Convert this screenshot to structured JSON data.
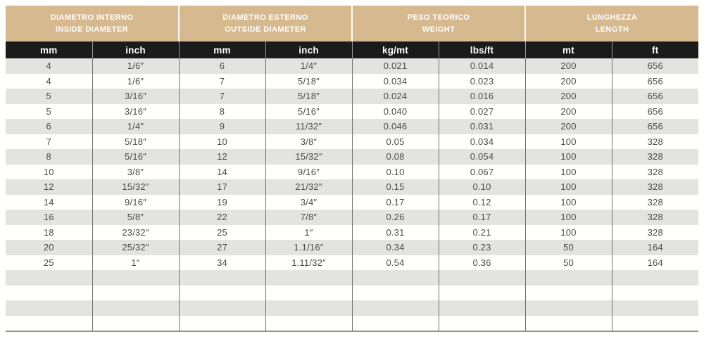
{
  "table": {
    "groups": [
      {
        "title_line1": "DIAMETRO INTERNO",
        "title_line2": "INSIDE DIAMETER",
        "units": [
          "mm",
          "inch"
        ]
      },
      {
        "title_line1": "DIAMETRO ESTERNO",
        "title_line2": "OUTSIDE DIAMETER",
        "units": [
          "mm",
          "inch"
        ]
      },
      {
        "title_line1": "PESO TEORICO",
        "title_line2": "WEIGHT",
        "units": [
          "kg/mt",
          "lbs/ft"
        ]
      },
      {
        "title_line1": "LUNGHEZZA",
        "title_line2": "LENGTH",
        "units": [
          "mt",
          "ft"
        ]
      }
    ],
    "rows": [
      [
        "4",
        "1/6″",
        "6",
        "1/4″",
        "0.021",
        "0.014",
        "200",
        "656"
      ],
      [
        "4",
        "1/6″",
        "7",
        "5/18″",
        "0.034",
        "0.023",
        "200",
        "656"
      ],
      [
        "5",
        "3/16″",
        "7",
        "5/18″",
        "0.024",
        "0.016",
        "200",
        "656"
      ],
      [
        "5",
        "3/16″",
        "8",
        "5/16″",
        "0.040",
        "0.027",
        "200",
        "656"
      ],
      [
        "6",
        "1/4″",
        "9",
        "11/32″",
        "0.046",
        "0.031",
        "200",
        "656"
      ],
      [
        "7",
        "5/18″",
        "10",
        "3/8″",
        "0.05",
        "0.034",
        "100",
        "328"
      ],
      [
        "8",
        "5/16″",
        "12",
        "15/32″",
        "0.08",
        "0.054",
        "100",
        "328"
      ],
      [
        "10",
        "3/8″",
        "14",
        "9/16″",
        "0.10",
        "0.067",
        "100",
        "328"
      ],
      [
        "12",
        "15/32″",
        "17",
        "21/32″",
        "0.15",
        "0.10",
        "100",
        "328"
      ],
      [
        "14",
        "9/16″",
        "19",
        "3/4″",
        "0.17",
        "0.12",
        "100",
        "328"
      ],
      [
        "16",
        "5/8″",
        "22",
        "7/8″",
        "0.26",
        "0.17",
        "100",
        "328"
      ],
      [
        "18",
        "23/32″",
        "25",
        "1″",
        "0.31",
        "0.21",
        "100",
        "328"
      ],
      [
        "20",
        "25/32″",
        "27",
        "1.1/16″",
        "0.34",
        "0.23",
        "50",
        "164"
      ],
      [
        "25",
        "1″",
        "34",
        "1.11/32″",
        "0.54",
        "0.36",
        "50",
        "164"
      ]
    ],
    "empty_row_count": 4
  },
  "colors": {
    "group_header_bg": "#d6b98e",
    "units_row_bg": "#1b1b1b",
    "shade_row_bg": "#e3e3e1",
    "grid_line": "#6f6f6f",
    "bottom_border": "#8f8f8f",
    "header_text": "#ffffff",
    "data_text": "#4b4b4b"
  }
}
